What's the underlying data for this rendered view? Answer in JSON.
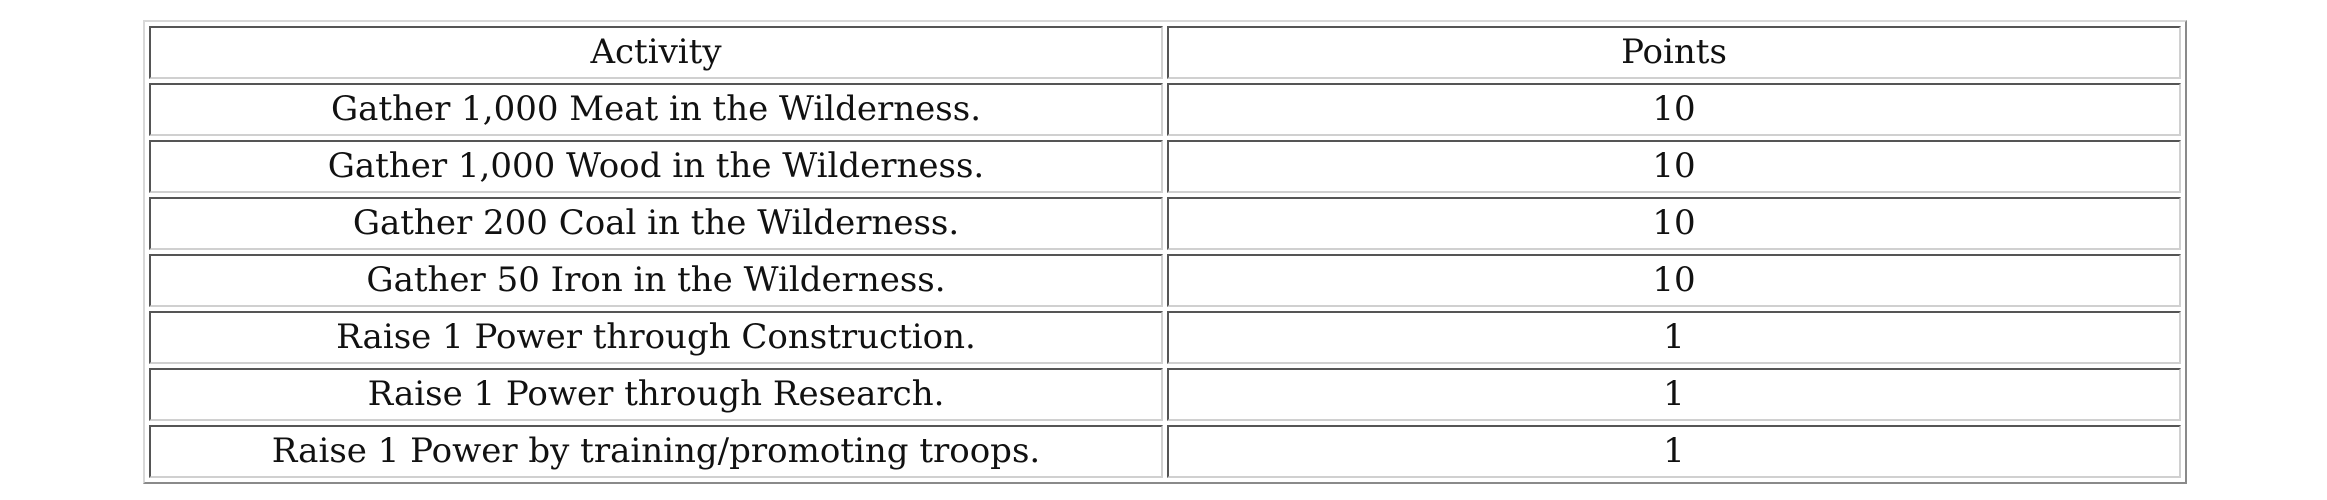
{
  "table": {
    "headers": [
      "Activity",
      "Points"
    ],
    "rows": [
      {
        "activity": "Gather 1,000 Meat in the Wilderness.",
        "points": "10"
      },
      {
        "activity": "Gather 1,000 Wood in the Wilderness.",
        "points": "10"
      },
      {
        "activity": "Gather 200 Coal in the Wilderness.",
        "points": "10"
      },
      {
        "activity": "Gather 50 Iron in the Wilderness.",
        "points": "10"
      },
      {
        "activity": "Raise 1 Power through Construction.",
        "points": "1"
      },
      {
        "activity": "Raise 1 Power through Research.",
        "points": "1"
      },
      {
        "activity": "Raise 1 Power by training/promoting troops.",
        "points": "1"
      }
    ]
  }
}
